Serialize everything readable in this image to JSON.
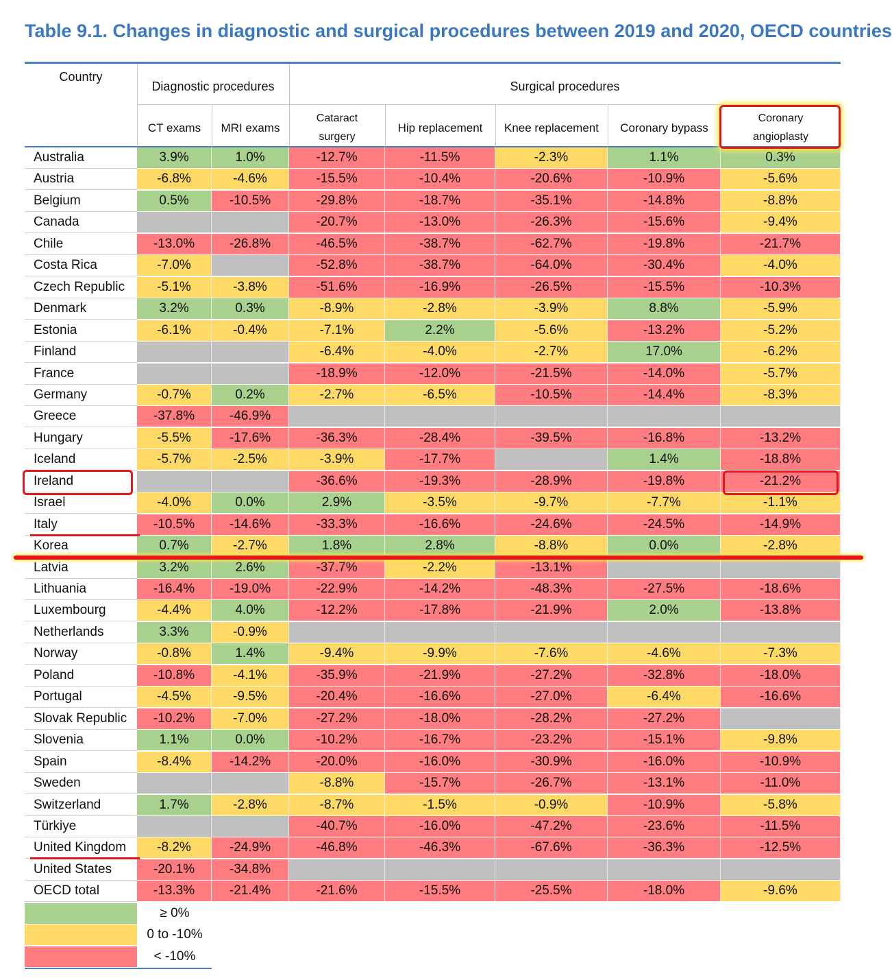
{
  "title": "Table 9.1. Changes in diagnostic and surgical procedures between 2019 and 2020, OECD countries",
  "header": {
    "country": "Country",
    "diagnostic": "Diagnostic procedures",
    "surgical": "Surgical procedures",
    "columns": [
      "CT exams",
      "MRI exams",
      "Cataract surgery",
      "Hip replacement",
      "Knee replacement",
      "Coronary bypass",
      "Coronary angioplasty"
    ]
  },
  "colors": {
    "green": "#a9d18e",
    "yellow": "#ffd966",
    "red": "#ff7c80",
    "grey": "#c0c0c0",
    "annotation": "#e4171c",
    "title": "#3b78bf"
  },
  "rows": [
    {
      "country": "Australia",
      "values": [
        "3.9%",
        "1.0%",
        "-12.7%",
        "-11.5%",
        "-2.3%",
        "1.1%",
        "0.3%"
      ]
    },
    {
      "country": "Austria",
      "values": [
        "-6.8%",
        "-4.6%",
        "-15.5%",
        "-10.4%",
        "-20.6%",
        "-10.9%",
        "-5.6%"
      ]
    },
    {
      "country": "Belgium",
      "values": [
        "0.5%",
        "-10.5%",
        "-29.8%",
        "-18.7%",
        "-35.1%",
        "-14.8%",
        "-8.8%"
      ]
    },
    {
      "country": "Canada",
      "values": [
        "",
        "",
        "-20.7%",
        "-13.0%",
        "-26.3%",
        "-15.6%",
        "-9.4%"
      ]
    },
    {
      "country": "Chile",
      "values": [
        "-13.0%",
        "-26.8%",
        "-46.5%",
        "-38.7%",
        "-62.7%",
        "-19.8%",
        "-21.7%"
      ]
    },
    {
      "country": "Costa Rica",
      "values": [
        "-7.0%",
        "",
        "-52.8%",
        "-38.7%",
        "-64.0%",
        "-30.4%",
        "-4.0%"
      ]
    },
    {
      "country": "Czech Republic",
      "values": [
        "-5.1%",
        "-3.8%",
        "-51.6%",
        "-16.9%",
        "-26.5%",
        "-15.5%",
        "-10.3%"
      ]
    },
    {
      "country": "Denmark",
      "values": [
        "3.2%",
        "0.3%",
        "-8.9%",
        "-2.8%",
        "-3.9%",
        "8.8%",
        "-5.9%"
      ]
    },
    {
      "country": "Estonia",
      "values": [
        "-6.1%",
        "-0.4%",
        "-7.1%",
        "2.2%",
        "-5.6%",
        "-13.2%",
        "-5.2%"
      ]
    },
    {
      "country": "Finland",
      "values": [
        "",
        "",
        "-6.4%",
        "-4.0%",
        "-2.7%",
        "17.0%",
        "-6.2%"
      ]
    },
    {
      "country": "France",
      "values": [
        "",
        "",
        "-18.9%",
        "-12.0%",
        "-21.5%",
        "-14.0%",
        "-5.7%"
      ]
    },
    {
      "country": "Germany",
      "values": [
        "-0.7%",
        "0.2%",
        "-2.7%",
        "-6.5%",
        "-10.5%",
        "-14.4%",
        "-8.3%"
      ]
    },
    {
      "country": "Greece",
      "values": [
        "-37.8%",
        "-46.9%",
        "",
        "",
        "",
        "",
        ""
      ]
    },
    {
      "country": "Hungary",
      "values": [
        "-5.5%",
        "-17.6%",
        "-36.3%",
        "-28.4%",
        "-39.5%",
        "-16.8%",
        "-13.2%"
      ]
    },
    {
      "country": "Iceland",
      "values": [
        "-5.7%",
        "-2.5%",
        "-3.9%",
        "-17.7%",
        "",
        "1.4%",
        "-18.8%"
      ]
    },
    {
      "country": "Ireland",
      "values": [
        "",
        "",
        "-36.6%",
        "-19.3%",
        "-28.9%",
        "-19.8%",
        "-21.2%"
      ]
    },
    {
      "country": "Israel",
      "values": [
        "-4.0%",
        "0.0%",
        "2.9%",
        "-3.5%",
        "-9.7%",
        "-7.7%",
        "-1.1%"
      ]
    },
    {
      "country": "Italy",
      "values": [
        "-10.5%",
        "-14.6%",
        "-33.3%",
        "-16.6%",
        "-24.6%",
        "-24.5%",
        "-14.9%"
      ]
    },
    {
      "country": "Korea",
      "values": [
        "0.7%",
        "-2.7%",
        "1.8%",
        "2.8%",
        "-8.8%",
        "0.0%",
        "-2.8%"
      ]
    },
    {
      "country": "Latvia",
      "values": [
        "3.2%",
        "2.6%",
        "-37.7%",
        "-2.2%",
        "-13.1%",
        "",
        ""
      ]
    },
    {
      "country": "Lithuania",
      "values": [
        "-16.4%",
        "-19.0%",
        "-22.9%",
        "-14.2%",
        "-48.3%",
        "-27.5%",
        "-18.6%"
      ]
    },
    {
      "country": "Luxembourg",
      "values": [
        "-4.4%",
        "4.0%",
        "-12.2%",
        "-17.8%",
        "-21.9%",
        "2.0%",
        "-13.8%"
      ]
    },
    {
      "country": "Netherlands",
      "values": [
        "3.3%",
        "-0.9%",
        "",
        "",
        "",
        "",
        ""
      ]
    },
    {
      "country": "Norway",
      "values": [
        "-0.8%",
        "1.4%",
        "-9.4%",
        "-9.9%",
        "-7.6%",
        "-4.6%",
        "-7.3%"
      ]
    },
    {
      "country": "Poland",
      "values": [
        "-10.8%",
        "-4.1%",
        "-35.9%",
        "-21.9%",
        "-27.2%",
        "-32.8%",
        "-18.0%"
      ]
    },
    {
      "country": "Portugal",
      "values": [
        "-4.5%",
        "-9.5%",
        "-20.4%",
        "-16.6%",
        "-27.0%",
        "-6.4%",
        "-16.6%"
      ]
    },
    {
      "country": "Slovak Republic",
      "values": [
        "-10.2%",
        "-7.0%",
        "-27.2%",
        "-18.0%",
        "-28.2%",
        "-27.2%",
        ""
      ]
    },
    {
      "country": "Slovenia",
      "values": [
        "1.1%",
        "0.0%",
        "-10.2%",
        "-16.7%",
        "-23.2%",
        "-15.1%",
        "-9.8%"
      ]
    },
    {
      "country": "Spain",
      "values": [
        "-8.4%",
        "-14.2%",
        "-20.0%",
        "-16.0%",
        "-30.9%",
        "-16.0%",
        "-10.9%"
      ]
    },
    {
      "country": "Sweden",
      "values": [
        "",
        "",
        "-8.8%",
        "-15.7%",
        "-26.7%",
        "-13.1%",
        "-11.0%"
      ]
    },
    {
      "country": "Switzerland",
      "values": [
        "1.7%",
        "-2.8%",
        "-8.7%",
        "-1.5%",
        "-0.9%",
        "-10.9%",
        "-5.8%"
      ]
    },
    {
      "country": "Türkiye",
      "values": [
        "",
        "",
        "-40.7%",
        "-16.0%",
        "-47.2%",
        "-23.6%",
        "-11.5%"
      ]
    },
    {
      "country": "United Kingdom",
      "values": [
        "-8.2%",
        "-24.9%",
        "-46.8%",
        "-46.3%",
        "-67.6%",
        "-36.3%",
        "-12.5%"
      ]
    },
    {
      "country": "United States",
      "values": [
        "-20.1%",
        "-34.8%",
        "",
        "",
        "",
        "",
        ""
      ]
    },
    {
      "country": "OECD total",
      "values": [
        "-13.3%",
        "-21.4%",
        "-21.6%",
        "-15.5%",
        "-25.5%",
        "-18.0%",
        "-9.6%"
      ]
    }
  ],
  "legend": [
    {
      "color": "green",
      "label": "≥ 0%"
    },
    {
      "color": "yellow",
      "label": "0 to -10%"
    },
    {
      "color": "red",
      "label": "< -10%"
    }
  ]
}
